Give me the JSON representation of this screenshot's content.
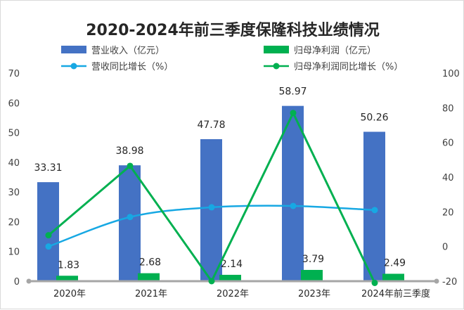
{
  "chart_data": {
    "type": "bar",
    "title": "2020-2024年前三季度保隆科技业绩情况",
    "categories": [
      "2020年",
      "2021年",
      "2022年",
      "2023年",
      "2024年前三季度"
    ],
    "series": [
      {
        "name": "营业收入（亿元）",
        "kind": "bar",
        "axis": "left",
        "color": "#4472C4",
        "values": [
          33.31,
          38.98,
          47.78,
          58.97,
          50.26
        ],
        "labels": [
          "33.31",
          "38.98",
          "47.78",
          "58.97",
          "50.26"
        ]
      },
      {
        "name": "归母净利润（亿元）",
        "kind": "bar",
        "axis": "left",
        "color": "#00B050",
        "values": [
          1.83,
          2.68,
          2.14,
          3.79,
          2.49
        ],
        "labels": [
          "1.83",
          "2.68",
          "2.14",
          "3.79",
          "2.49"
        ]
      },
      {
        "name": "营收同比增长（%）",
        "kind": "line",
        "axis": "right",
        "color": "#17A8E3",
        "values": [
          0,
          17,
          22.6,
          23.4,
          21
        ]
      },
      {
        "name": "归母净利润同比增长（%）",
        "kind": "line",
        "axis": "right",
        "color": "#00B050",
        "values": [
          6.5,
          46.5,
          -20,
          77,
          -21
        ]
      }
    ],
    "left_axis": {
      "min": 0,
      "max": 70,
      "ticks": [
        "0",
        "10",
        "20",
        "30",
        "40",
        "50",
        "60",
        "70"
      ]
    },
    "right_axis": {
      "min": -20,
      "max": 100,
      "ticks": [
        "-20",
        "0",
        "20",
        "40",
        "60",
        "80",
        "100"
      ]
    },
    "legend_position": "top"
  }
}
